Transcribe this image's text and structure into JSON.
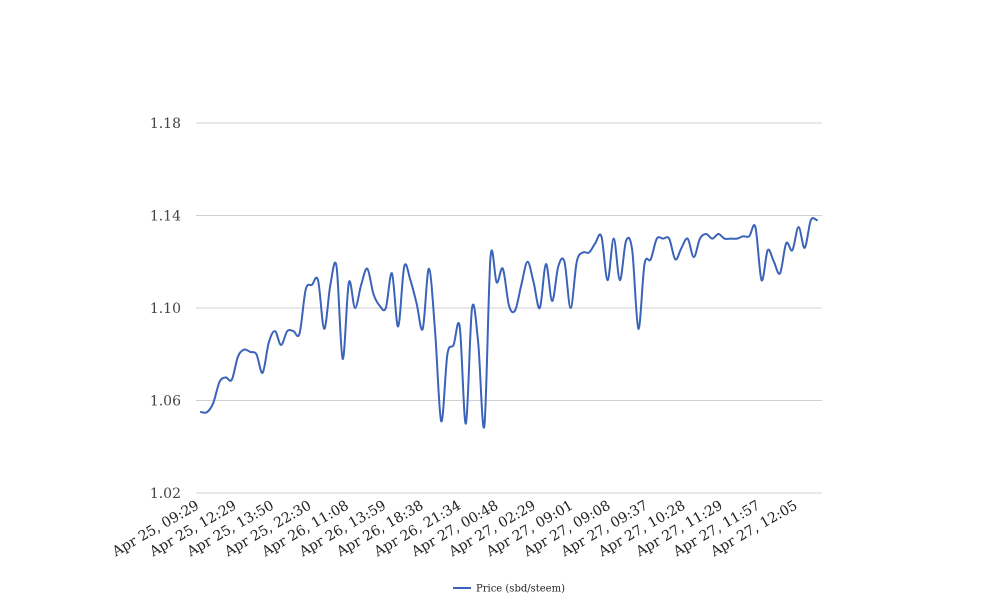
{
  "chart_data": {
    "type": "line",
    "legend_position": "bottom",
    "grid": true,
    "ylim": [
      1.02,
      1.18
    ],
    "yticks": [
      "1.02",
      "1.06",
      "1.10",
      "1.14",
      "1.18"
    ],
    "xtick_labels": [
      "Apr 25, 09:29",
      "Apr 25, 12:29",
      "Apr 25, 13:50",
      "Apr 25, 22:30",
      "Apr 26, 11:08",
      "Apr 26, 13:59",
      "Apr 26, 18:38",
      "Apr 26, 21:34",
      "Apr 27, 00:48",
      "Apr 27, 02:29",
      "Apr 27, 09:01",
      "Apr 27, 09:08",
      "Apr 27, 09:37",
      "Apr 27, 10:28",
      "Apr 27, 11:29",
      "Apr 27, 11:57",
      "Apr 27, 12:05"
    ],
    "colors": {
      "series": "#3b63b8",
      "grid": "#d0d0d0"
    },
    "series": [
      {
        "name": "Price (sbd/steem)",
        "values": [
          1.055,
          1.055,
          1.059,
          1.068,
          1.07,
          1.069,
          1.079,
          1.082,
          1.081,
          1.08,
          1.072,
          1.085,
          1.09,
          1.084,
          1.09,
          1.09,
          1.089,
          1.108,
          1.11,
          1.112,
          1.091,
          1.11,
          1.118,
          1.078,
          1.111,
          1.1,
          1.11,
          1.117,
          1.106,
          1.101,
          1.1,
          1.115,
          1.092,
          1.118,
          1.112,
          1.102,
          1.091,
          1.117,
          1.09,
          1.051,
          1.08,
          1.084,
          1.092,
          1.05,
          1.1,
          1.085,
          1.049,
          1.122,
          1.111,
          1.117,
          1.101,
          1.099,
          1.11,
          1.12,
          1.111,
          1.1,
          1.119,
          1.103,
          1.118,
          1.12,
          1.1,
          1.12,
          1.124,
          1.124,
          1.128,
          1.131,
          1.112,
          1.13,
          1.112,
          1.129,
          1.125,
          1.091,
          1.119,
          1.121,
          1.13,
          1.13,
          1.13,
          1.121,
          1.126,
          1.13,
          1.122,
          1.13,
          1.132,
          1.13,
          1.132,
          1.13,
          1.13,
          1.13,
          1.131,
          1.131,
          1.135,
          1.112,
          1.125,
          1.12,
          1.115,
          1.128,
          1.125,
          1.135,
          1.126,
          1.138,
          1.138
        ]
      }
    ]
  }
}
